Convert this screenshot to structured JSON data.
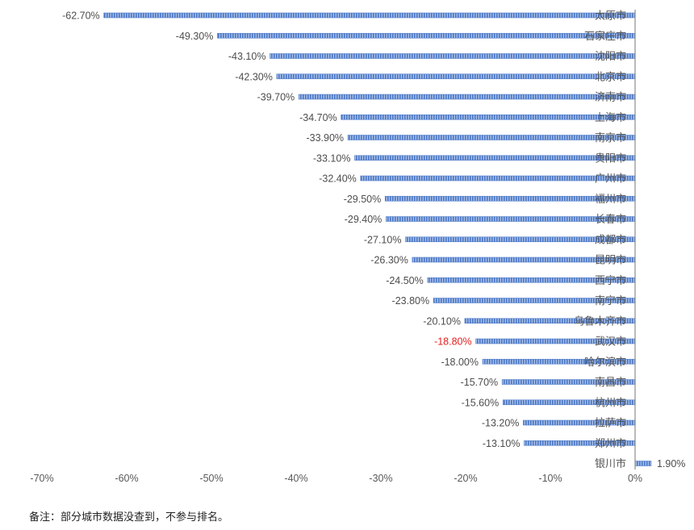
{
  "chart_data": {
    "type": "bar",
    "orientation": "horizontal",
    "categories": [
      "太原市",
      "石家庄市",
      "沈阳市",
      "北京市",
      "济南市",
      "上海市",
      "南京市",
      "贵阳市",
      "广州市",
      "福州市",
      "长春市",
      "成都市",
      "昆明市",
      "西宁市",
      "南宁市",
      "乌鲁木齐市",
      "武汉市",
      "哈尔滨市",
      "南昌市",
      "杭州市",
      "拉萨市",
      "郑州市",
      "银川市"
    ],
    "values": [
      -62.7,
      -49.3,
      -43.1,
      -42.3,
      -39.7,
      -34.7,
      -33.9,
      -33.1,
      -32.4,
      -29.5,
      -29.4,
      -27.1,
      -26.3,
      -24.5,
      -23.8,
      -20.1,
      -18.8,
      -18.0,
      -15.7,
      -15.6,
      -13.2,
      -13.1,
      1.9
    ],
    "value_labels": [
      "-62.70%",
      "-49.30%",
      "-43.10%",
      "-42.30%",
      "-39.70%",
      "-34.70%",
      "-33.90%",
      "-33.10%",
      "-32.40%",
      "-29.50%",
      "-29.40%",
      "-27.10%",
      "-26.30%",
      "-24.50%",
      "-23.80%",
      "-20.10%",
      "-18.80%",
      "-18.00%",
      "-15.70%",
      "-15.60%",
      "-13.20%",
      "-13.10%",
      "1.90%"
    ],
    "highlight_index": 16,
    "xlim": [
      -70,
      0
    ],
    "x_ticks": [
      -70,
      -60,
      -50,
      -40,
      -30,
      -20,
      -10,
      0
    ],
    "x_tick_labels": [
      "-70%",
      "-60%",
      "-50%",
      "-40%",
      "-30%",
      "-20%",
      "-10%",
      "0%"
    ],
    "grid": false,
    "bar_color": "#4f7ec9",
    "highlight_label_color": "#e8201f",
    "label_color": "#4d4d4d"
  },
  "note": "备注：部分城市数据没查到，不参与排名。"
}
